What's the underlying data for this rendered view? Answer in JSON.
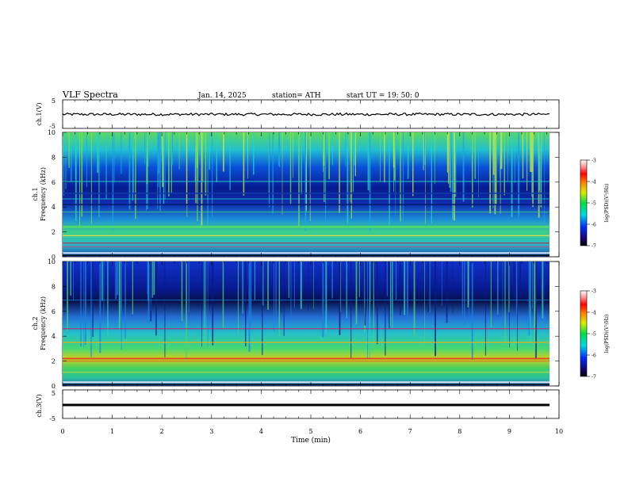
{
  "header": {
    "title": "VLF  Spectra",
    "date": "Jan.  14,  2025",
    "station": "station= ATH",
    "start_ut": "start  UT  =    19: 50: 0"
  },
  "chart_data": [
    {
      "type": "line",
      "panel": "ch1-waveform",
      "ylabel": "ch.1(V)",
      "ylim": [
        -5,
        5
      ],
      "yticks": [
        "5",
        "-5"
      ],
      "xlim": [
        0,
        10
      ],
      "series": [
        {
          "values_description_free": true,
          "level": 0.2,
          "color": "#000000"
        }
      ]
    },
    {
      "type": "heatmap",
      "panel": "ch1-spectrogram",
      "ylabel": "ch.1\nFrequency  (kHz)",
      "ylabel_line1": "ch.1",
      "ylabel_line2": "Frequency  (kHz)",
      "ylim": [
        0,
        10
      ],
      "yticks": [
        "0",
        "2",
        "4",
        "6",
        "8",
        "10"
      ],
      "xlim": [
        0,
        9.8
      ],
      "colorbar": {
        "label": "log(PSD)(V²/Hz)",
        "ticks": [
          "-3",
          "-4",
          "-5",
          "-6",
          "-7"
        ],
        "range": [
          -7,
          -3
        ]
      }
    },
    {
      "type": "heatmap",
      "panel": "ch2-spectrogram",
      "ylabel_line1": "ch.2",
      "ylabel_line2": "Frequency  (kHz)",
      "ylim": [
        0,
        10
      ],
      "yticks": [
        "0",
        "2",
        "4",
        "6",
        "8",
        "10"
      ],
      "xlim": [
        0,
        9.8
      ],
      "colorbar": {
        "label": "log(PSD)(V²/Hz)",
        "ticks": [
          "-3",
          "-4",
          "-5",
          "-6",
          "-7"
        ],
        "range": [
          -7,
          -3
        ]
      }
    },
    {
      "type": "line",
      "panel": "ch3-waveform",
      "ylabel": "ch.3(V)",
      "ylim": [
        -5,
        5
      ],
      "yticks": [
        "5",
        "-5"
      ],
      "xlim": [
        0,
        10
      ],
      "series": [
        {
          "level": -1.5,
          "color": "#000000"
        }
      ]
    }
  ],
  "xaxis": {
    "label": "Time  (min)",
    "ticks": [
      "0",
      "1",
      "2",
      "3",
      "4",
      "5",
      "6",
      "7",
      "8",
      "9",
      "10"
    ]
  }
}
